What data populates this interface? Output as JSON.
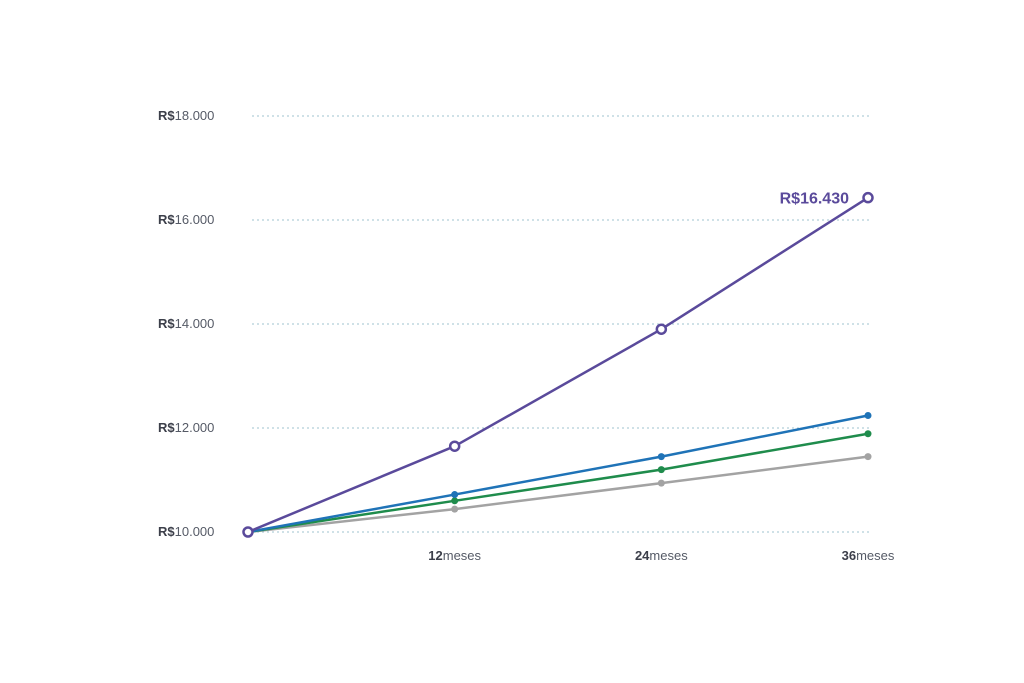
{
  "chart_data": {
    "type": "line",
    "x": [
      0,
      12,
      24,
      36
    ],
    "ylim": [
      10000,
      18000
    ],
    "grid": true,
    "yticks": [
      {
        "value": 10000,
        "currency": "R$",
        "number": "10.000"
      },
      {
        "value": 12000,
        "currency": "R$",
        "number": "12.000"
      },
      {
        "value": 14000,
        "currency": "R$",
        "number": "14.000"
      },
      {
        "value": 16000,
        "currency": "R$",
        "number": "16.000"
      },
      {
        "value": 18000,
        "currency": "R$",
        "number": "18.000"
      }
    ],
    "xticks": [
      {
        "value": 12,
        "number": "12",
        "unit": "meses"
      },
      {
        "value": 24,
        "number": "24",
        "unit": "meses"
      },
      {
        "value": 36,
        "number": "36",
        "unit": "meses"
      }
    ],
    "series": [
      {
        "values": [
          10000,
          10440,
          10940,
          11450
        ],
        "color": "#a3a3a3",
        "marker": "dot"
      },
      {
        "values": [
          10000,
          10600,
          11200,
          11890
        ],
        "color": "#1f8c4c",
        "marker": "dot"
      },
      {
        "values": [
          10000,
          10720,
          11450,
          12240
        ],
        "color": "#1f73b7",
        "marker": "dot"
      },
      {
        "values": [
          10000,
          11650,
          13900,
          16430
        ],
        "color": "#5a4a9b",
        "marker": "ring"
      }
    ],
    "annotation": {
      "text": "R$16.430",
      "color": "#5a4a9b"
    }
  }
}
